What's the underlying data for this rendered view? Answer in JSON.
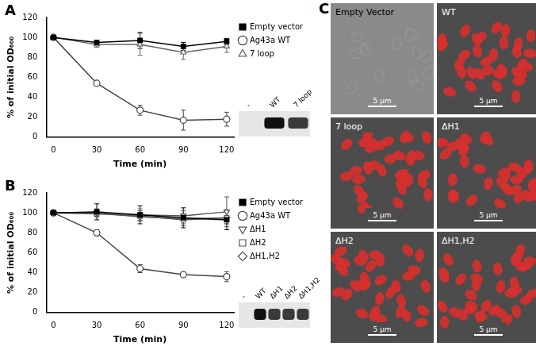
{
  "chart_data": [
    {
      "type": "line",
      "title": "A",
      "x_label": "Time (min)",
      "y_label": "% of initial OD₆₀₀",
      "x": [
        0,
        30,
        60,
        90,
        120
      ],
      "xlim": [
        -5,
        125
      ],
      "xticks": [
        0,
        30,
        60,
        90,
        120
      ],
      "ylim": [
        0,
        120
      ],
      "yticks": [
        0,
        20,
        40,
        60,
        80,
        100,
        120
      ],
      "legend": "right",
      "blot_lanes": [
        "-",
        "WT",
        "7 loop"
      ],
      "series": [
        {
          "name": "Empty vector",
          "color": "#000000",
          "marker": "filled_square",
          "values": [
            100,
            95,
            97,
            91,
            96
          ],
          "errors": [
            0,
            2,
            8,
            4,
            3
          ]
        },
        {
          "name": "Ag43a WT",
          "color": "#444444",
          "marker": "open_circle",
          "values": [
            100,
            54,
            27,
            17,
            18
          ],
          "errors": [
            0,
            1,
            5,
            10,
            7
          ]
        },
        {
          "name": "7 loop",
          "color": "#666666",
          "marker": "open_triangle",
          "values": [
            100,
            93,
            93,
            85,
            91
          ],
          "errors": [
            0,
            3,
            11,
            7,
            6
          ]
        }
      ]
    },
    {
      "type": "line",
      "title": "B",
      "x_label": "Time (min)",
      "y_label": "% of initial OD₆₀₀",
      "x": [
        0,
        30,
        60,
        90,
        120
      ],
      "xlim": [
        -5,
        125
      ],
      "xticks": [
        0,
        30,
        60,
        90,
        120
      ],
      "ylim": [
        0,
        120
      ],
      "yticks": [
        0,
        20,
        40,
        60,
        80,
        100,
        120
      ],
      "legend": "right",
      "blot_lanes": [
        "-",
        "WT",
        "ΔH1",
        "ΔH2",
        "ΔH1,H2"
      ],
      "series": [
        {
          "name": "Empty vector",
          "color": "#000000",
          "marker": "filled_square",
          "values": [
            100,
            101,
            98,
            95,
            93
          ],
          "errors": [
            0,
            8,
            9,
            10,
            10
          ]
        },
        {
          "name": "Ag43a WT",
          "color": "#444444",
          "marker": "open_circle",
          "values": [
            100,
            80,
            44,
            38,
            36
          ],
          "errors": [
            0,
            3,
            4,
            2,
            5
          ]
        },
        {
          "name": "ΔH1",
          "color": "#555555",
          "marker": "open_triangle_down",
          "values": [
            100,
            100,
            98,
            97,
            101
          ],
          "errors": [
            0,
            4,
            6,
            5,
            15
          ]
        },
        {
          "name": "ΔH2",
          "color": "#555555",
          "marker": "open_square",
          "values": [
            100,
            99,
            97,
            93,
            95
          ],
          "errors": [
            0,
            3,
            5,
            6,
            6
          ]
        },
        {
          "name": "ΔH1,H2",
          "color": "#555555",
          "marker": "open_diamond",
          "values": [
            100,
            100,
            96,
            94,
            95
          ],
          "errors": [
            0,
            3,
            4,
            5,
            6
          ]
        }
      ]
    }
  ],
  "microscopy": {
    "title": "C",
    "scale_bar": "5 μm",
    "images": [
      {
        "label": "Empty Vector",
        "color": "#9a9a9a"
      },
      {
        "label": "WT",
        "color": "#d8302e"
      },
      {
        "label": "7 loop",
        "color": "#d8302e"
      },
      {
        "label": "ΔH1",
        "color": "#d8302e"
      },
      {
        "label": "ΔH2",
        "color": "#d8302e"
      },
      {
        "label": "ΔH1,H2",
        "color": "#d8302e"
      }
    ]
  }
}
